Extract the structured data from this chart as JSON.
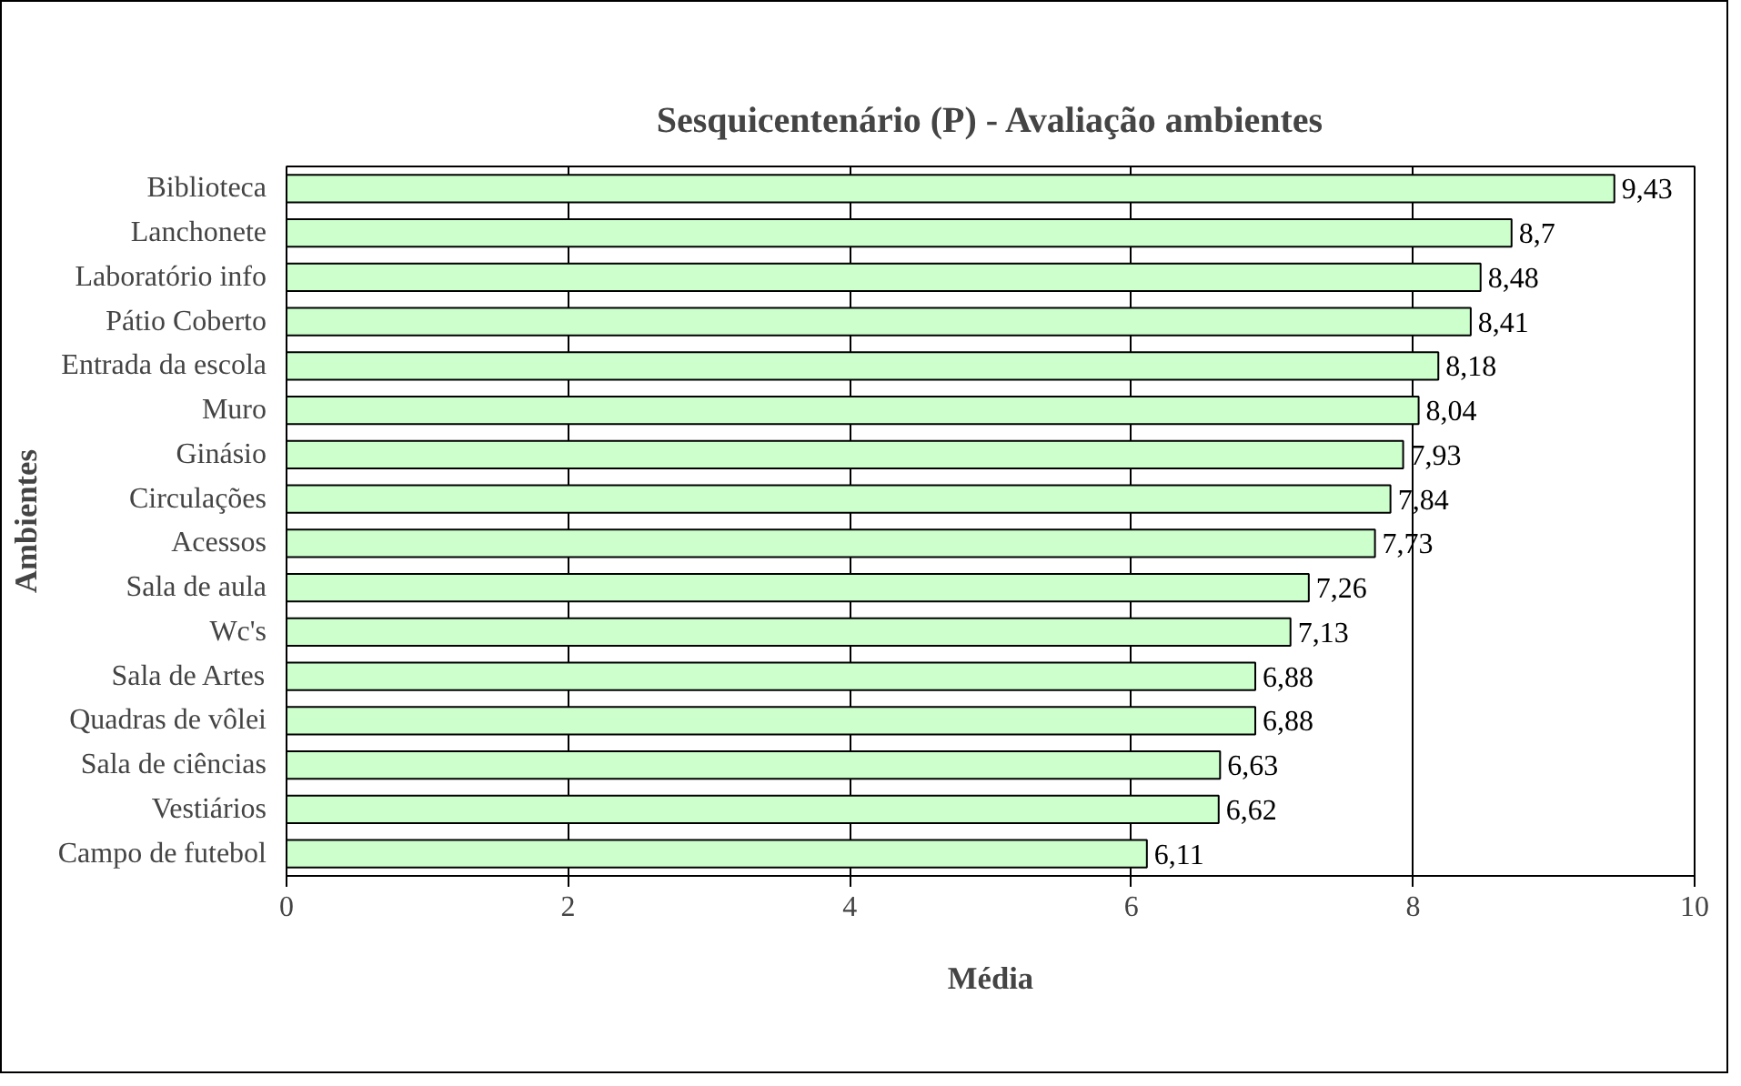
{
  "chart_data": {
    "type": "bar",
    "orientation": "horizontal",
    "title": "Sesquicentenário (P) - Avaliação ambientes",
    "xlabel": "Média",
    "ylabel": "Ambientes",
    "categories": [
      "Biblioteca",
      "Lanchonete",
      "Laboratório info",
      "Pátio Coberto",
      "Entrada da escola",
      "Muro",
      "Ginásio",
      "Circulações",
      "Acessos",
      "Sala de aula",
      "Wc's",
      "Sala de Artes",
      "Quadras de vôlei",
      "Sala de ciências",
      "Vestiários",
      "Campo de futebol"
    ],
    "values": [
      9.43,
      8.7,
      8.48,
      8.41,
      8.18,
      8.04,
      7.93,
      7.84,
      7.73,
      7.26,
      7.13,
      6.88,
      6.88,
      6.63,
      6.62,
      6.11
    ],
    "value_labels": [
      "9,43",
      "8,7",
      "8,48",
      "8,41",
      "8,18",
      "8,04",
      "7,93",
      "7,84",
      "7,73",
      "7,26",
      "7,13",
      "6,88",
      "6,88",
      "6,63",
      "6,62",
      "6,11"
    ],
    "color": "#ccffcc",
    "xlim": [
      0,
      10
    ],
    "xticks": [
      0,
      2,
      4,
      6,
      8,
      10
    ],
    "grid": "x"
  }
}
